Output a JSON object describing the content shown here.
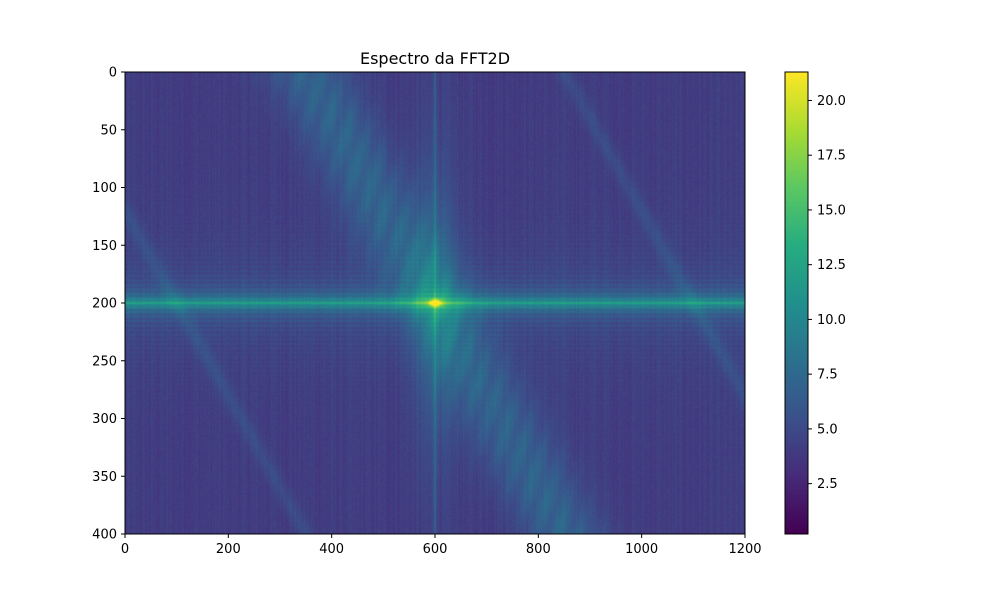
{
  "chart_data": {
    "type": "heatmap",
    "title": "Espectro da FFT2D",
    "xlabel": "",
    "ylabel": "",
    "colormap": "viridis",
    "colormap_stops": [
      "#440154",
      "#472c7a",
      "#3b518b",
      "#2c718e",
      "#21908d",
      "#27ad81",
      "#5cc863",
      "#aadc32",
      "#fde725"
    ],
    "image_width": 1200,
    "image_height": 400,
    "xlim": [
      0,
      1200
    ],
    "ylim": [
      400,
      0
    ],
    "x_ticks": [
      0,
      200,
      400,
      600,
      800,
      1000,
      1200
    ],
    "y_ticks": [
      0,
      50,
      100,
      150,
      200,
      250,
      300,
      350,
      400
    ],
    "x_tick_labels": [
      "0",
      "200",
      "400",
      "600",
      "800",
      "1000",
      "1200"
    ],
    "y_tick_labels": [
      "0",
      "50",
      "100",
      "150",
      "200",
      "250",
      "300",
      "350",
      "400"
    ],
    "colorbar": {
      "min": 0.2,
      "max": 21.3,
      "ticks": [
        2.5,
        5.0,
        7.5,
        10.0,
        12.5,
        15.0,
        17.5,
        20.0
      ],
      "tick_labels": [
        "2.5",
        "5.0",
        "7.5",
        "10.0",
        "12.5",
        "15.0",
        "17.5",
        "20.0"
      ]
    },
    "features": {
      "center": [
        600,
        200
      ],
      "center_peak": 21.3,
      "background_level": 4.0,
      "horizontal_band_level": 10.5,
      "vertical_line_level": 9.0,
      "diagonal_band_level": 7.5
    }
  }
}
